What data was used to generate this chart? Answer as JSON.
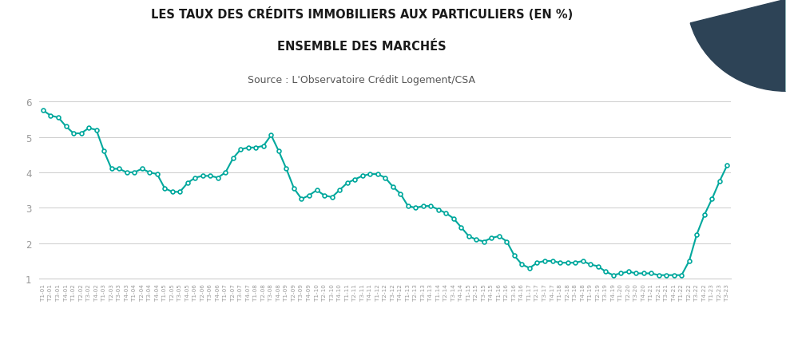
{
  "title_line1": "LES TAUX DES CRÉDITS IMMOBILIERS AUX PARTICULIERS (EN %)",
  "title_line2": "ENSEMBLE DES MARCHÉS",
  "subtitle": "Source : L'Observatoire Crédit Logement/CSA",
  "line_color": "#00A89D",
  "marker": "o",
  "marker_size": 3.5,
  "linewidth": 1.5,
  "ylim": [
    1,
    6
  ],
  "yticks": [
    1,
    2,
    3,
    4,
    5,
    6
  ],
  "background_color": "#ffffff",
  "grid_color": "#cccccc",
  "labels": [
    "T1-01",
    "T2-01",
    "T3-01",
    "T4-01",
    "T1-02",
    "T2-02",
    "T3-02",
    "T4-02",
    "T1-03",
    "T2-03",
    "T3-03",
    "T4-03",
    "T1-04",
    "T2-04",
    "T3-04",
    "T4-04",
    "T1-05",
    "T2-05",
    "T3-05",
    "T4-05",
    "T1-06",
    "T2-06",
    "T3-06",
    "T4-06",
    "T1-07",
    "T2-07",
    "T3-07",
    "T4-07",
    "T1-08",
    "T2-08",
    "T3-08",
    "T4-08",
    "T1-09",
    "T2-09",
    "T3-09",
    "T4-09",
    "T1-10",
    "T2-10",
    "T3-10",
    "T4-10",
    "T1-11",
    "T2-11",
    "T3-11",
    "T4-11",
    "T1-12",
    "T2-12",
    "T3-12",
    "T4-12",
    "T1-13",
    "T2-13",
    "T3-13",
    "T4-13",
    "T1-14",
    "T2-14",
    "T3-14",
    "T4-14",
    "T1-15",
    "T2-15",
    "T3-15",
    "T4-15",
    "T1-16",
    "T2-16",
    "T3-16",
    "T4-16",
    "T1-17",
    "T2-17",
    "T3-17",
    "T4-17",
    "T1-18",
    "T2-18",
    "T3-18",
    "T4-18",
    "T1-19",
    "T2-19",
    "T3-19",
    "T4-19",
    "T1-20",
    "T2-20",
    "T3-20",
    "T4-20",
    "T1-21",
    "T2-21",
    "T3-21",
    "T4-21",
    "T1-22",
    "T2-22",
    "T3-22",
    "T4-22",
    "T1-23",
    "T2-23",
    "T3-23"
  ],
  "values": [
    5.75,
    5.6,
    5.55,
    5.3,
    5.1,
    5.1,
    5.25,
    5.2,
    4.6,
    4.1,
    4.1,
    4.0,
    4.0,
    4.1,
    4.0,
    3.95,
    3.55,
    3.45,
    3.45,
    3.7,
    3.85,
    3.9,
    3.9,
    3.85,
    4.0,
    4.4,
    4.65,
    4.7,
    4.7,
    4.75,
    5.05,
    4.6,
    4.1,
    3.55,
    3.25,
    3.35,
    3.5,
    3.35,
    3.3,
    3.5,
    3.7,
    3.8,
    3.9,
    3.95,
    3.95,
    3.85,
    3.6,
    3.4,
    3.05,
    3.0,
    3.05,
    3.05,
    2.95,
    2.85,
    2.7,
    2.45,
    2.2,
    2.1,
    2.05,
    2.15,
    2.2,
    2.05,
    1.65,
    1.4,
    1.3,
    1.45,
    1.5,
    1.5,
    1.45,
    1.45,
    1.45,
    1.5,
    1.4,
    1.35,
    1.2,
    1.1,
    1.15,
    1.2,
    1.15,
    1.15,
    1.15,
    1.1,
    1.1,
    1.1,
    1.1,
    1.5,
    2.25,
    2.8,
    3.25,
    3.75,
    4.2
  ],
  "decor_dark_color": "#2d4356",
  "decor_light_color": "#b2ddd8",
  "title_fontsize": 10.5,
  "subtitle_fontsize": 9
}
